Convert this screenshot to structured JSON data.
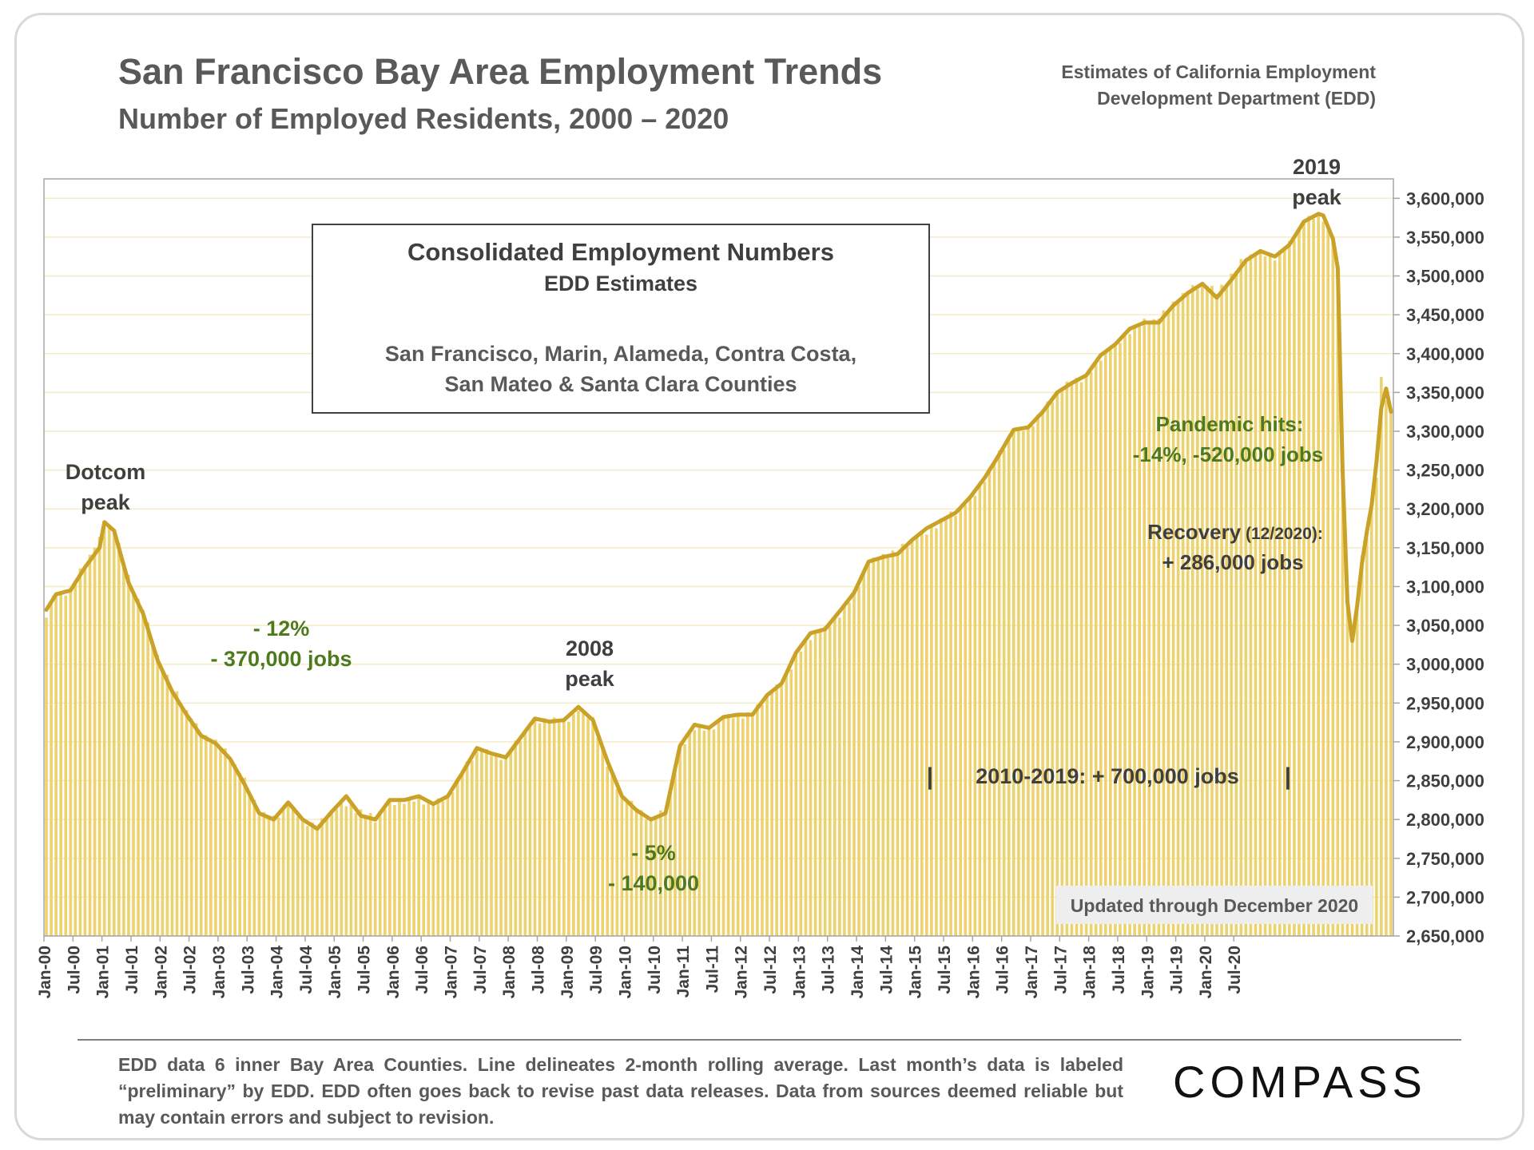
{
  "header": {
    "title": "San Francisco Bay Area Employment Trends",
    "subtitle": "Number of Employed Residents, 2000 – 2020",
    "source_line1": "Estimates of California Employment",
    "source_line2": "Development Department (EDD)"
  },
  "footer": {
    "note": "EDD data 6 inner Bay Area Counties. Line delineates 2-month rolling average. Last month’s data is labeled “preliminary” by EDD. EDD often goes back to revise past data releases. Data from sources deemed reliable but may contain errors and subject to revision.",
    "logo": "COMPASS"
  },
  "colors": {
    "line": "#c9a227",
    "bar": "#ecd36f",
    "positive": "#4e7a1e",
    "text": "#3f3f3f"
  },
  "chart_data": {
    "type": "bar",
    "overlay_type": "line",
    "title": "San Francisco Bay Area Employment Trends",
    "subtitle": "Number of Employed Residents, 2000 – 2020",
    "ylabel": "",
    "ylim": [
      2650000,
      3625000
    ],
    "yticks": [
      2650000,
      2700000,
      2750000,
      2800000,
      2850000,
      2900000,
      2950000,
      3000000,
      3050000,
      3100000,
      3150000,
      3200000,
      3250000,
      3300000,
      3350000,
      3400000,
      3450000,
      3500000,
      3550000,
      3600000
    ],
    "ytick_labels": [
      "2,650,000",
      "2,700,000",
      "2,750,000",
      "2,800,000",
      "2,850,000",
      "2,900,000",
      "2,950,000",
      "3,000,000",
      "3,050,000",
      "3,100,000",
      "3,150,000",
      "3,200,000",
      "3,250,000",
      "3,300,000",
      "3,350,000",
      "3,400,000",
      "3,450,000",
      "3,500,000",
      "3,550,000",
      "3,600,000"
    ],
    "axis_side": "right",
    "gridlines": true,
    "xtick_labels": [
      "Jan-00",
      "Jul-00",
      "Jan-01",
      "Jul-01",
      "Jan-02",
      "Jul-02",
      "Jan-03",
      "Jul-03",
      "Jan-04",
      "Jul-04",
      "Jan-05",
      "Jul-05",
      "Jan-06",
      "Jul-06",
      "Jan-07",
      "Jul-07",
      "Jan-08",
      "Jul-08",
      "Jan-09",
      "Jul-09",
      "Jan-10",
      "Jul-10",
      "Jan-11",
      "Jul-11",
      "Jan-12",
      "Jul-12",
      "Jan-13",
      "Jul-13",
      "Jan-14",
      "Jul-14",
      "Jan-15",
      "Jul-15",
      "Jan-16",
      "Jul-16",
      "Jan-17",
      "Jul-17",
      "Jan-18",
      "Jul-18",
      "Jan-19",
      "Jul-19",
      "Jan-20",
      "Jul-20"
    ],
    "months": 252,
    "series": [
      {
        "name": "Monthly employed residents (bars)",
        "anchors": [
          [
            0,
            3060000
          ],
          [
            2,
            3090000
          ],
          [
            5,
            3095000
          ],
          [
            8,
            3130000
          ],
          [
            11,
            3160000
          ],
          [
            12,
            3180000
          ],
          [
            14,
            3175000
          ],
          [
            17,
            3110000
          ],
          [
            20,
            3070000
          ],
          [
            23,
            3010000
          ],
          [
            26,
            2970000
          ],
          [
            29,
            2940000
          ],
          [
            32,
            2910000
          ],
          [
            35,
            2900000
          ],
          [
            38,
            2880000
          ],
          [
            41,
            2850000
          ],
          [
            44,
            2810000
          ],
          [
            47,
            2800000
          ],
          [
            50,
            2820000
          ],
          [
            53,
            2800000
          ],
          [
            56,
            2790000
          ],
          [
            59,
            2810000
          ],
          [
            62,
            2820000
          ],
          [
            65,
            2810000
          ],
          [
            68,
            2800000
          ],
          [
            71,
            2820000
          ],
          [
            74,
            2825000
          ],
          [
            77,
            2825000
          ],
          [
            80,
            2820000
          ],
          [
            83,
            2830000
          ],
          [
            86,
            2860000
          ],
          [
            89,
            2890000
          ],
          [
            92,
            2885000
          ],
          [
            95,
            2880000
          ],
          [
            98,
            2905000
          ],
          [
            101,
            2925000
          ],
          [
            104,
            2930000
          ],
          [
            107,
            2925000
          ],
          [
            110,
            2940000
          ],
          [
            113,
            2930000
          ],
          [
            116,
            2870000
          ],
          [
            119,
            2830000
          ],
          [
            122,
            2815000
          ],
          [
            125,
            2800000
          ],
          [
            128,
            2810000
          ],
          [
            131,
            2890000
          ],
          [
            134,
            2920000
          ],
          [
            137,
            2915000
          ],
          [
            140,
            2930000
          ],
          [
            143,
            2935000
          ],
          [
            146,
            2935000
          ],
          [
            149,
            2960000
          ],
          [
            152,
            2975000
          ],
          [
            155,
            3010000
          ],
          [
            158,
            3035000
          ],
          [
            161,
            3045000
          ],
          [
            164,
            3065000
          ],
          [
            167,
            3090000
          ],
          [
            170,
            3130000
          ],
          [
            173,
            3140000
          ],
          [
            176,
            3145000
          ],
          [
            179,
            3160000
          ],
          [
            182,
            3170000
          ],
          [
            185,
            3185000
          ],
          [
            188,
            3195000
          ],
          [
            191,
            3210000
          ],
          [
            194,
            3240000
          ],
          [
            197,
            3270000
          ],
          [
            200,
            3300000
          ],
          [
            203,
            3305000
          ],
          [
            206,
            3325000
          ],
          [
            209,
            3350000
          ],
          [
            212,
            3365000
          ],
          [
            215,
            3370000
          ],
          [
            218,
            3395000
          ],
          [
            221,
            3410000
          ],
          [
            224,
            3430000
          ],
          [
            227,
            3440000
          ],
          [
            230,
            3445000
          ],
          [
            233,
            3465000
          ],
          [
            236,
            3480000
          ],
          [
            239,
            3490000
          ],
          [
            242,
            3480000
          ],
          [
            245,
            3500000
          ],
          [
            248,
            3525000
          ],
          [
            251,
            3530000
          ],
          [
            254,
            3525000
          ],
          [
            257,
            3540000
          ],
          [
            260,
            3570000
          ],
          [
            263,
            3580000
          ],
          [
            264,
            3575000
          ],
          [
            266,
            3550000
          ],
          [
            267,
            3500000
          ],
          [
            268,
            3260000
          ],
          [
            269,
            3090000
          ],
          [
            270,
            3030000
          ],
          [
            271,
            3080000
          ],
          [
            272,
            3140000
          ],
          [
            273,
            3170000
          ],
          [
            274,
            3200000
          ],
          [
            275,
            3240000
          ],
          [
            276,
            3370000
          ],
          [
            277,
            3340000
          ],
          [
            278,
            3330000
          ]
        ]
      },
      {
        "name": "2-month rolling average (line)",
        "anchors": [
          [
            0,
            3070000
          ],
          [
            2,
            3090000
          ],
          [
            5,
            3095000
          ],
          [
            8,
            3125000
          ],
          [
            11,
            3150000
          ],
          [
            12,
            3183000
          ],
          [
            14,
            3172000
          ],
          [
            17,
            3105000
          ],
          [
            20,
            3065000
          ],
          [
            23,
            3005000
          ],
          [
            26,
            2965000
          ],
          [
            29,
            2935000
          ],
          [
            32,
            2908000
          ],
          [
            35,
            2898000
          ],
          [
            38,
            2878000
          ],
          [
            41,
            2845000
          ],
          [
            44,
            2808000
          ],
          [
            47,
            2800000
          ],
          [
            50,
            2822000
          ],
          [
            53,
            2800000
          ],
          [
            56,
            2788000
          ],
          [
            59,
            2810000
          ],
          [
            62,
            2830000
          ],
          [
            65,
            2805000
          ],
          [
            68,
            2800000
          ],
          [
            71,
            2825000
          ],
          [
            74,
            2825000
          ],
          [
            77,
            2830000
          ],
          [
            80,
            2820000
          ],
          [
            83,
            2830000
          ],
          [
            86,
            2860000
          ],
          [
            89,
            2892000
          ],
          [
            92,
            2885000
          ],
          [
            95,
            2880000
          ],
          [
            98,
            2905000
          ],
          [
            101,
            2930000
          ],
          [
            104,
            2926000
          ],
          [
            107,
            2928000
          ],
          [
            110,
            2945000
          ],
          [
            113,
            2928000
          ],
          [
            116,
            2875000
          ],
          [
            119,
            2830000
          ],
          [
            122,
            2812000
          ],
          [
            125,
            2800000
          ],
          [
            128,
            2808000
          ],
          [
            131,
            2895000
          ],
          [
            134,
            2922000
          ],
          [
            137,
            2918000
          ],
          [
            140,
            2932000
          ],
          [
            143,
            2935000
          ],
          [
            146,
            2935000
          ],
          [
            149,
            2960000
          ],
          [
            152,
            2975000
          ],
          [
            155,
            3015000
          ],
          [
            158,
            3040000
          ],
          [
            161,
            3045000
          ],
          [
            164,
            3068000
          ],
          [
            167,
            3092000
          ],
          [
            170,
            3132000
          ],
          [
            173,
            3138000
          ],
          [
            176,
            3142000
          ],
          [
            179,
            3160000
          ],
          [
            182,
            3175000
          ],
          [
            185,
            3185000
          ],
          [
            188,
            3195000
          ],
          [
            191,
            3215000
          ],
          [
            194,
            3240000
          ],
          [
            197,
            3270000
          ],
          [
            200,
            3302000
          ],
          [
            203,
            3305000
          ],
          [
            206,
            3325000
          ],
          [
            209,
            3350000
          ],
          [
            212,
            3362000
          ],
          [
            215,
            3372000
          ],
          [
            218,
            3398000
          ],
          [
            221,
            3412000
          ],
          [
            224,
            3432000
          ],
          [
            227,
            3440000
          ],
          [
            230,
            3440000
          ],
          [
            233,
            3462000
          ],
          [
            236,
            3478000
          ],
          [
            239,
            3490000
          ],
          [
            242,
            3472000
          ],
          [
            245,
            3495000
          ],
          [
            248,
            3520000
          ],
          [
            251,
            3532000
          ],
          [
            254,
            3525000
          ],
          [
            257,
            3540000
          ],
          [
            260,
            3570000
          ],
          [
            263,
            3580000
          ],
          [
            264,
            3578000
          ],
          [
            266,
            3548000
          ],
          [
            267,
            3510000
          ],
          [
            268,
            3250000
          ],
          [
            269,
            3080000
          ],
          [
            270,
            3030000
          ],
          [
            271,
            3075000
          ],
          [
            272,
            3130000
          ],
          [
            273,
            3170000
          ],
          [
            274,
            3205000
          ],
          [
            275,
            3260000
          ],
          [
            276,
            3330000
          ],
          [
            277,
            3355000
          ],
          [
            278,
            3325000
          ]
        ]
      }
    ],
    "annotations": [
      {
        "key": "dotcom",
        "line1": "Dotcom",
        "line2": "peak",
        "color": "#3f3f3f"
      },
      {
        "key": "drop1",
        "line1": "- 12%",
        "line2": "- 370,000 jobs",
        "color": "#4e7a1e"
      },
      {
        "key": "peak2008",
        "line1": "2008",
        "line2": "peak",
        "color": "#3f3f3f"
      },
      {
        "key": "drop2",
        "line1": "- 5%",
        "line2": "- 140,000",
        "color": "#4e7a1e"
      },
      {
        "key": "decade",
        "text": "2010-2019: + 700,000 jobs",
        "bar": "|",
        "color": "#3f3f3f"
      },
      {
        "key": "peak2019",
        "line1": "2019",
        "line2": "peak",
        "color": "#3f3f3f"
      },
      {
        "key": "pandemic",
        "line1": "Pandemic hits:",
        "line2": "-14%, -520,000 jobs",
        "color": "#4e7a1e"
      },
      {
        "key": "recovery",
        "line1a": "Recovery",
        "line1b": " (12/2020):",
        "line2": "+ 286,000 jobs",
        "color": "#3f3f3f"
      }
    ],
    "legend_box": {
      "title": "Consolidated Employment Numbers",
      "subtitle": "EDD Estimates",
      "line1": "San Francisco, Marin, Alameda, Contra Costa,",
      "line2": "San Mateo & Santa Clara Counties"
    },
    "update_badge": "Updated through December 2020"
  }
}
